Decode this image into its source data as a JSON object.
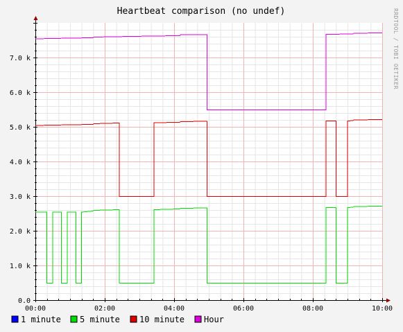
{
  "chart_data": {
    "type": "line",
    "title": "Heartbeat comparison (no undef)",
    "watermark": "RRDTOOL / TOBI OETIKER",
    "x_tick_labels": [
      "00:00",
      "02:00",
      "04:00",
      "06:00",
      "08:00",
      "10:00"
    ],
    "y_tick_labels": [
      "0.0",
      "1.0 k",
      "2.0 k",
      "3.0 k",
      "4.0 k",
      "5.0 k",
      "6.0 k",
      "7.0 k"
    ],
    "xlim": [
      0,
      600
    ],
    "ylim": [
      0,
      8000
    ],
    "grid": true,
    "legend_position": "bottom",
    "colors": {
      "background": "#f3f3f3",
      "canvas": "#ffffff",
      "minor_grid": "#e6e6e6",
      "major_grid": "#f2b3b3",
      "axis": "#000000",
      "arrow": "#990000"
    },
    "legend": [
      {
        "label": "1 minute",
        "color": "#0000ff"
      },
      {
        "label": "5 minute",
        "color": "#00dd00"
      },
      {
        "label": "10 minute",
        "color": "#dd0000"
      },
      {
        "label": "Hour",
        "color": "#dd00dd"
      }
    ],
    "series": [
      {
        "name": "Hour",
        "color": "#dd00dd",
        "points": [
          [
            0,
            7550
          ],
          [
            60,
            7570
          ],
          [
            100,
            7580
          ],
          [
            101,
            7600
          ],
          [
            200,
            7630
          ],
          [
            250,
            7640
          ],
          [
            251,
            7670
          ],
          [
            297,
            7670
          ],
          [
            297,
            5500
          ],
          [
            503,
            5500
          ],
          [
            503,
            7680
          ],
          [
            550,
            7690
          ],
          [
            551,
            7710
          ],
          [
            600,
            7720
          ]
        ]
      },
      {
        "name": "10 minute",
        "color": "#dd0000",
        "points": [
          [
            0,
            5050
          ],
          [
            60,
            5070
          ],
          [
            100,
            5080
          ],
          [
            101,
            5100
          ],
          [
            145,
            5120
          ],
          [
            145,
            3000
          ],
          [
            205,
            3000
          ],
          [
            205,
            5130
          ],
          [
            250,
            5140
          ],
          [
            251,
            5160
          ],
          [
            297,
            5170
          ],
          [
            297,
            3000
          ],
          [
            503,
            3000
          ],
          [
            503,
            5180
          ],
          [
            520,
            5180
          ],
          [
            520,
            3000
          ],
          [
            540,
            3000
          ],
          [
            540,
            5180
          ],
          [
            550,
            5190
          ],
          [
            551,
            5210
          ],
          [
            600,
            5220
          ]
        ]
      },
      {
        "name": "5 minute",
        "color": "#00dd00",
        "points": [
          [
            0,
            2550
          ],
          [
            20,
            2550
          ],
          [
            20,
            500
          ],
          [
            30,
            500
          ],
          [
            30,
            2550
          ],
          [
            45,
            2550
          ],
          [
            45,
            500
          ],
          [
            55,
            500
          ],
          [
            55,
            2550
          ],
          [
            70,
            2550
          ],
          [
            70,
            500
          ],
          [
            80,
            500
          ],
          [
            80,
            2550
          ],
          [
            100,
            2580
          ],
          [
            101,
            2600
          ],
          [
            145,
            2620
          ],
          [
            145,
            500
          ],
          [
            205,
            500
          ],
          [
            205,
            2620
          ],
          [
            250,
            2640
          ],
          [
            251,
            2660
          ],
          [
            297,
            2670
          ],
          [
            297,
            500
          ],
          [
            503,
            500
          ],
          [
            503,
            2680
          ],
          [
            520,
            2680
          ],
          [
            520,
            500
          ],
          [
            540,
            500
          ],
          [
            540,
            2680
          ],
          [
            550,
            2690
          ],
          [
            551,
            2710
          ],
          [
            600,
            2720
          ]
        ]
      },
      {
        "name": "1 minute",
        "color": "#0000ff",
        "points": []
      }
    ]
  }
}
